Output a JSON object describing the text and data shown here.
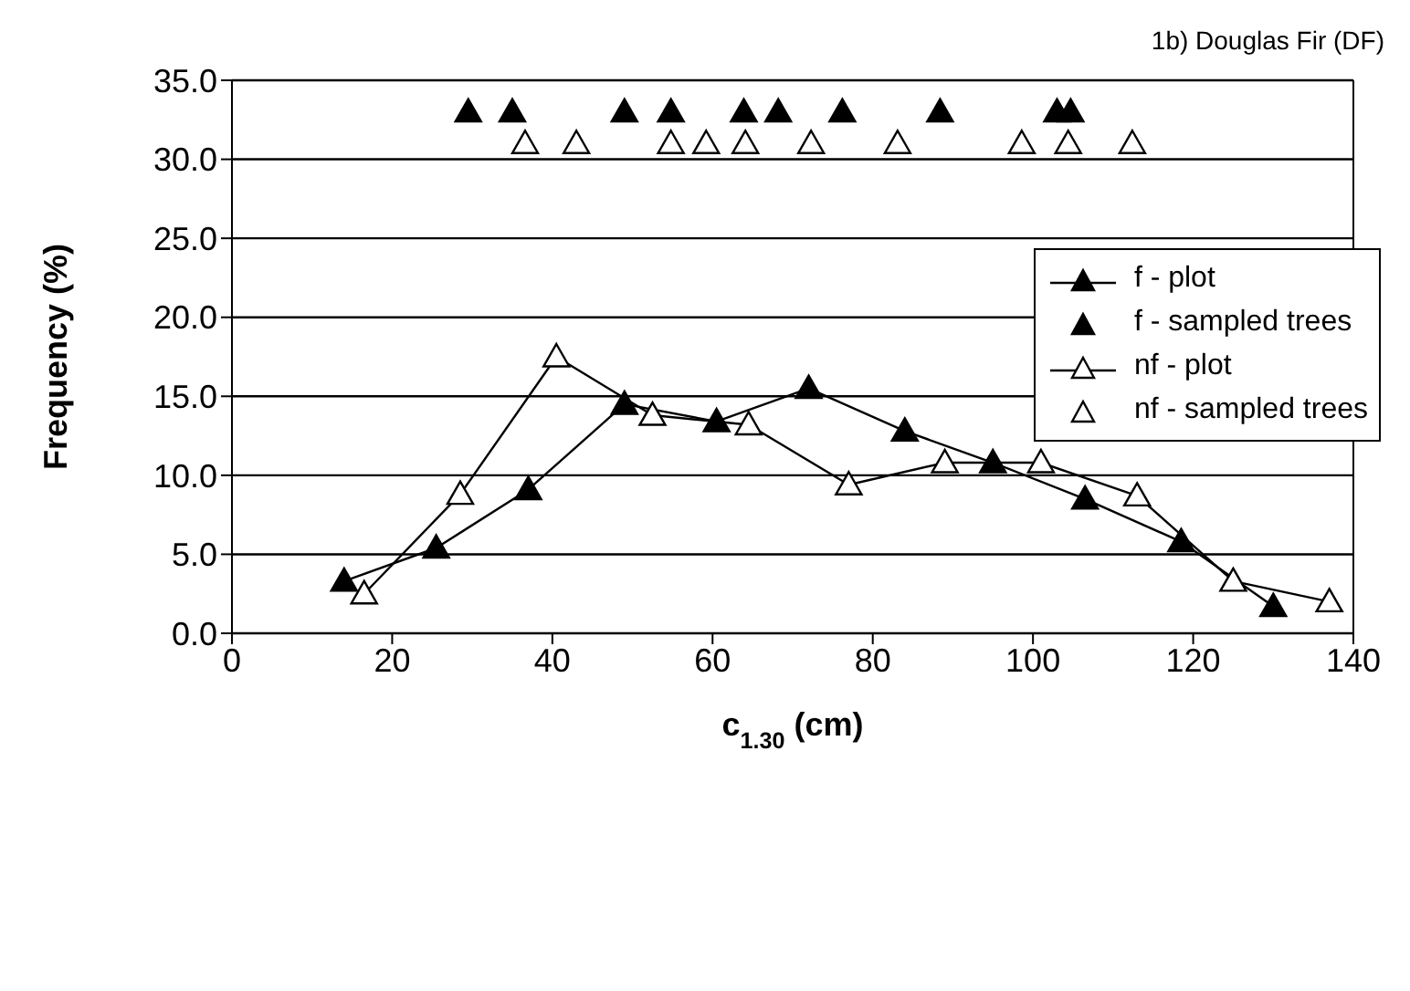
{
  "chart_data": {
    "type": "scatter",
    "title": "1b) Douglas Fir (DF)",
    "xlabel": "c$_{1.30}$ (cm)",
    "ylabel": "Frequency (%)",
    "xlim": [
      0,
      140
    ],
    "xticks": [
      0,
      20,
      40,
      60,
      80,
      100,
      120,
      140
    ],
    "ylim": [
      0,
      35
    ],
    "yticks": [
      {
        "value": 0,
        "label": "0.0"
      },
      {
        "value": 5,
        "label": "5.0"
      },
      {
        "value": 10,
        "label": "10.0"
      },
      {
        "value": 15,
        "label": "15.0"
      },
      {
        "value": 20,
        "label": "20.0"
      },
      {
        "value": 25,
        "label": "25.0"
      },
      {
        "value": 30,
        "label": "30.0"
      },
      {
        "value": 35,
        "label": "35.0"
      }
    ],
    "grid": "y",
    "legend": "top right",
    "marker": "triangle",
    "series": [
      {
        "name": "f - plot",
        "type": "line",
        "color": "#000000",
        "x": [
          14,
          25.5,
          37,
          49,
          60.5,
          72,
          84,
          95,
          106.5,
          118.5,
          130
        ],
        "values": [
          3.3,
          5.4,
          9.1,
          14.5,
          13.4,
          15.5,
          12.8,
          10.8,
          8.5,
          5.8,
          1.7
        ]
      },
      {
        "name": "f - sampled trees",
        "type": "scatter",
        "color": "#000000",
        "x": [
          29.5,
          35,
          49,
          54.8,
          63.9,
          68.2,
          76.2,
          88.4,
          103,
          104.7
        ],
        "values": [
          33,
          33,
          33,
          33,
          33,
          33,
          33,
          33,
          33,
          33
        ]
      },
      {
        "name": "nf - plot",
        "type": "line",
        "color": "#000000",
        "marker": "triangle-open",
        "x": [
          16.5,
          28.5,
          40.5,
          52.5,
          64.5,
          77,
          89,
          101,
          113,
          125,
          137
        ],
        "values": [
          2.5,
          8.8,
          17.5,
          13.8,
          13.2,
          9.4,
          10.8,
          10.8,
          8.7,
          3.3,
          2.0
        ]
      },
      {
        "name": "nf - sampled trees",
        "type": "scatter",
        "color": "#000000",
        "marker": "triangle-open",
        "x": [
          36.6,
          43,
          54.8,
          59.2,
          64.1,
          72.3,
          83.1,
          98.6,
          104.4,
          112.4
        ],
        "values": [
          31,
          31,
          31,
          31,
          31,
          31,
          31,
          31,
          31,
          31
        ]
      }
    ]
  }
}
